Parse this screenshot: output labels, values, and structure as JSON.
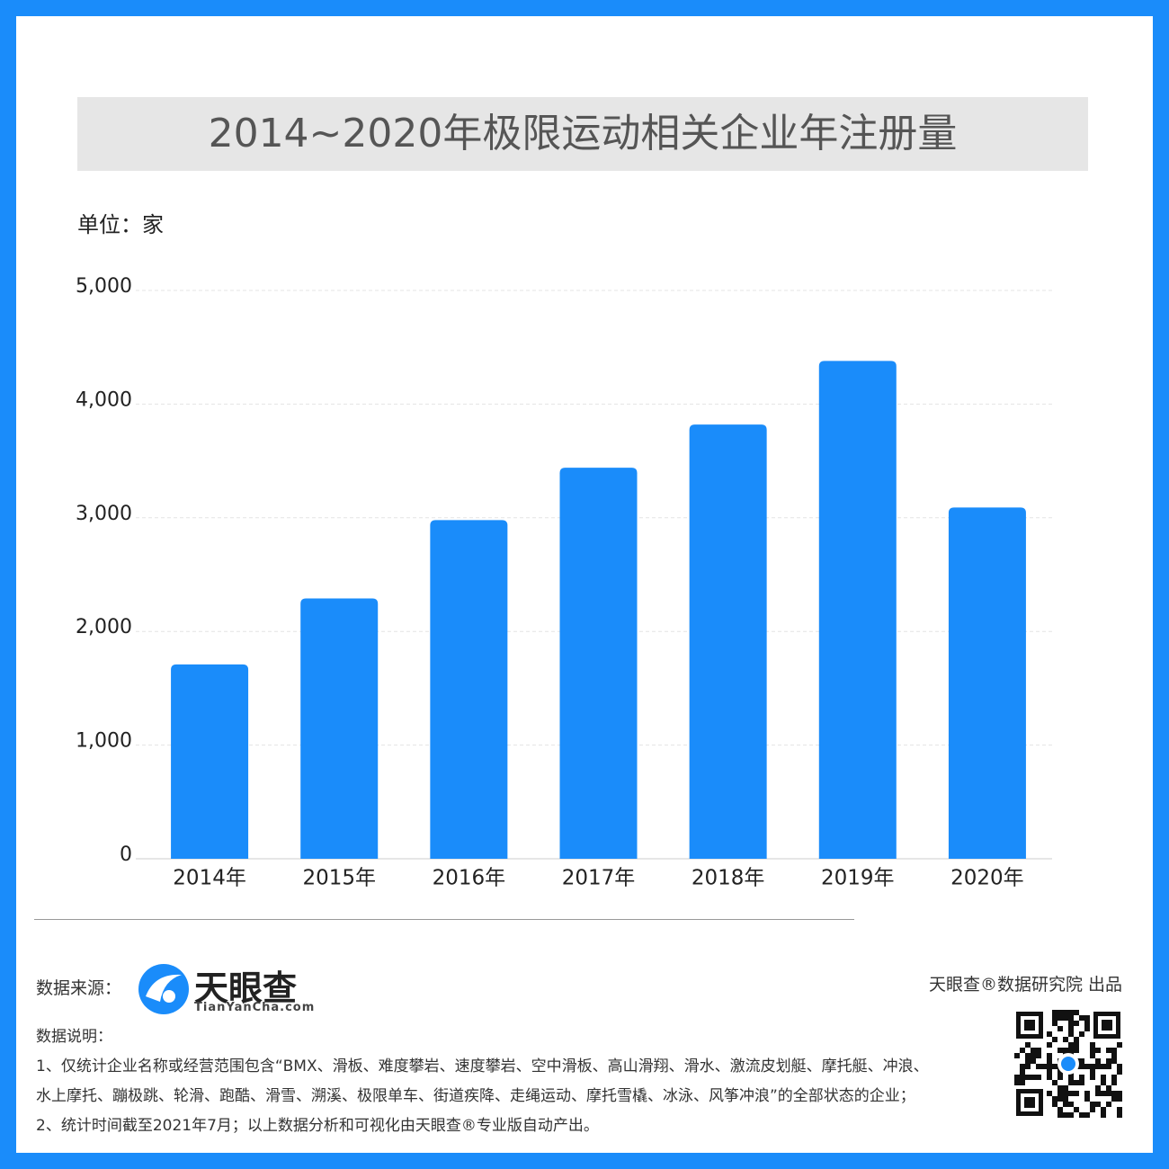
{
  "chart_data": {
    "type": "bar",
    "title": "2014~2020年极限运动相关企业年注册量",
    "unit_label": "单位：家",
    "categories": [
      "2014年",
      "2015年",
      "2016年",
      "2017年",
      "2018年",
      "2019年",
      "2020年"
    ],
    "values": [
      1710,
      2290,
      2980,
      3440,
      3820,
      4380,
      3090
    ],
    "color": "#1a8cfa",
    "ylim": [
      0,
      5000
    ],
    "yticks": [
      0,
      {
        "value": 1000,
        "label": "1,000"
      },
      {
        "value": 2000,
        "label": "2,000"
      },
      {
        "value": 3000,
        "label": "3,000"
      },
      {
        "value": 4000,
        "label": "4,000"
      },
      {
        "value": 5000,
        "label": "5,000"
      }
    ],
    "grid": true
  },
  "footer": {
    "source_label": "数据来源：",
    "logo_name": "天眼查",
    "logo_url": "TianYanCha.com",
    "publisher": "天眼查®数据研究院 出品",
    "notes_title": "数据说明：",
    "notes": [
      "1、仅统计企业名称或经营范围包含“BMX、滑板、难度攀岩、速度攀岩、空中滑板、高山滑翔、滑水、激流皮划艇、摩托艇、冲浪、",
      "水上摩托、蹦极跳、轮滑、跑酷、滑雪、溯溪、极限单车、街道疾降、走绳运动、摩托雪橇、冰泳、风筝冲浪”的全部状态的企业；",
      "2、统计时间截至2021年7月；以上数据分析和可视化由天眼查®专业版自动产出。"
    ]
  }
}
